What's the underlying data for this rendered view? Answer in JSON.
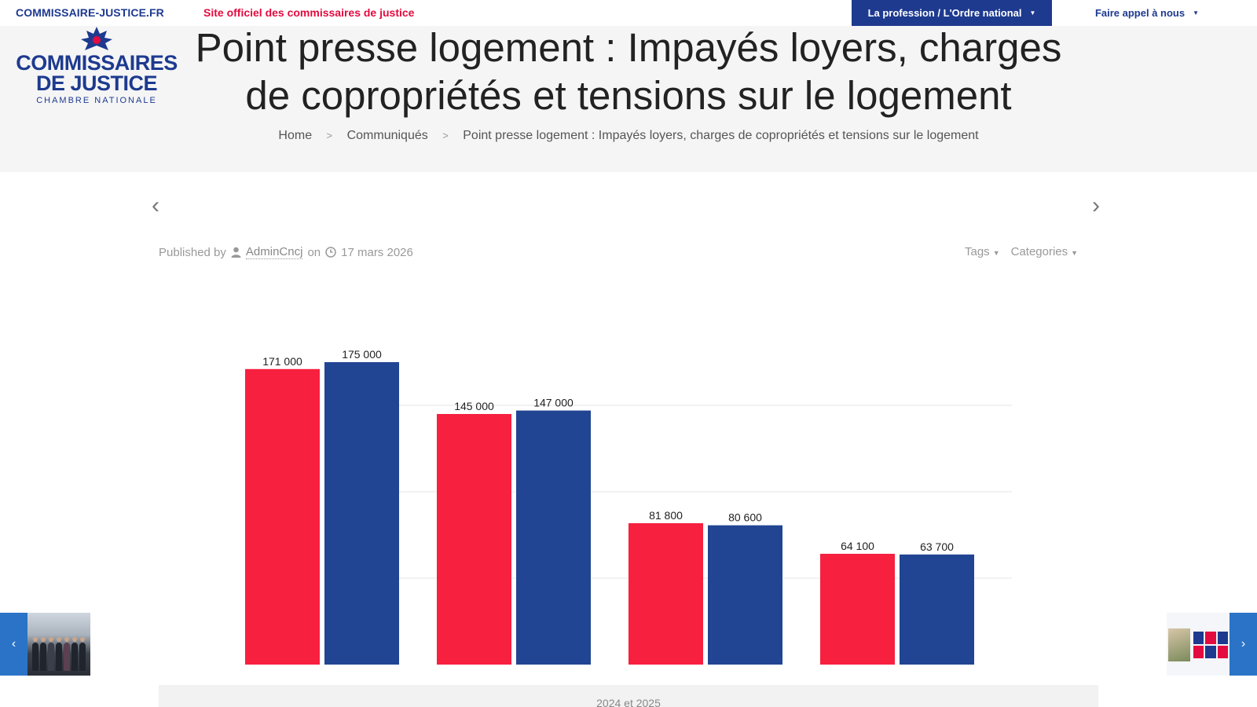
{
  "topbar": {
    "site_url": "COMMISSAIRE-JUSTICE.FR",
    "tagline": "Site officiel des commissaires de justice",
    "nav_profession": "La profession / L'Ordre national",
    "nav_appel": "Faire appel à nous"
  },
  "logo": {
    "line1": "COMMISSAIRES",
    "line2": "DE JUSTICE",
    "line3": "CHAMBRE NATIONALE"
  },
  "page": {
    "title_line1": "Point presse logement : Impayés loyers, charges",
    "title_line2": "de copropriétés et tensions sur le logement"
  },
  "breadcrumb": {
    "home": "Home",
    "section": "Communiqués",
    "current": "Point presse logement : Impayés loyers, charges de copropriétés et tensions sur le logement"
  },
  "meta": {
    "published_by": "Published by",
    "author": "AdminCncj",
    "on": "on",
    "date": "17 mars 2026",
    "tags": "Tags",
    "categories": "Categories"
  },
  "colors": {
    "brand_blue": "#1d3a8f",
    "brand_red": "#e30b3f",
    "bar_red": "#f7203f",
    "bar_blue": "#214593"
  },
  "chart_data": {
    "type": "bar",
    "categories": [
      "",
      "",
      "",
      ""
    ],
    "series": [
      {
        "values": [
          171000,
          145000,
          81800,
          64100
        ]
      },
      {
        "values": [
          175000,
          147000,
          80600,
          63700
        ]
      }
    ],
    "labels": [
      [
        "171 000",
        "145 000",
        "81 800",
        "64 100"
      ],
      [
        "175 000",
        "147 000",
        "80 600",
        "63 700"
      ]
    ],
    "ylim": [
      0,
      200000
    ],
    "grid": true,
    "caption": "2024 et 2025"
  }
}
